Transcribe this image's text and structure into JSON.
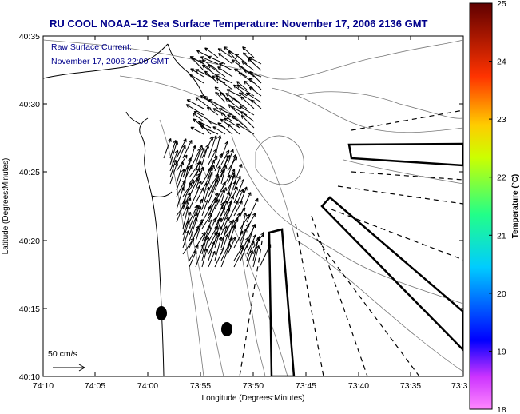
{
  "title": "RU COOL  NOAA–12  Sea Surface Temperature:  November 17, 2006 2136 GMT",
  "overlay": {
    "line1": "Raw Surface Current:",
    "line2": "November 17, 2006 22:00 GMT"
  },
  "scale_label": "50 cm/s",
  "x_axis": {
    "label": "Longitude (Degrees:Minutes)",
    "ticks": [
      "74:10",
      "74:05",
      "74:00",
      "73:55",
      "73:50",
      "73:45",
      "73:40",
      "73:35",
      "73:3"
    ]
  },
  "y_axis": {
    "label": "Latitude (Degrees:Minutes)",
    "ticks": [
      "40:35",
      "40:30",
      "40:25",
      "40:20",
      "40:15",
      "40:10"
    ]
  },
  "colorbar": {
    "label": "Temperature (°C)",
    "ticks": [
      "25",
      "24",
      "23",
      "22",
      "21",
      "20",
      "19",
      "18"
    ],
    "min": 18,
    "max": 25,
    "colors": [
      "#ff88ff",
      "#cc33ff",
      "#0000ff",
      "#00ccff",
      "#22ff88",
      "#ccff00",
      "#ffcc00",
      "#ff3300",
      "#600000"
    ]
  }
}
